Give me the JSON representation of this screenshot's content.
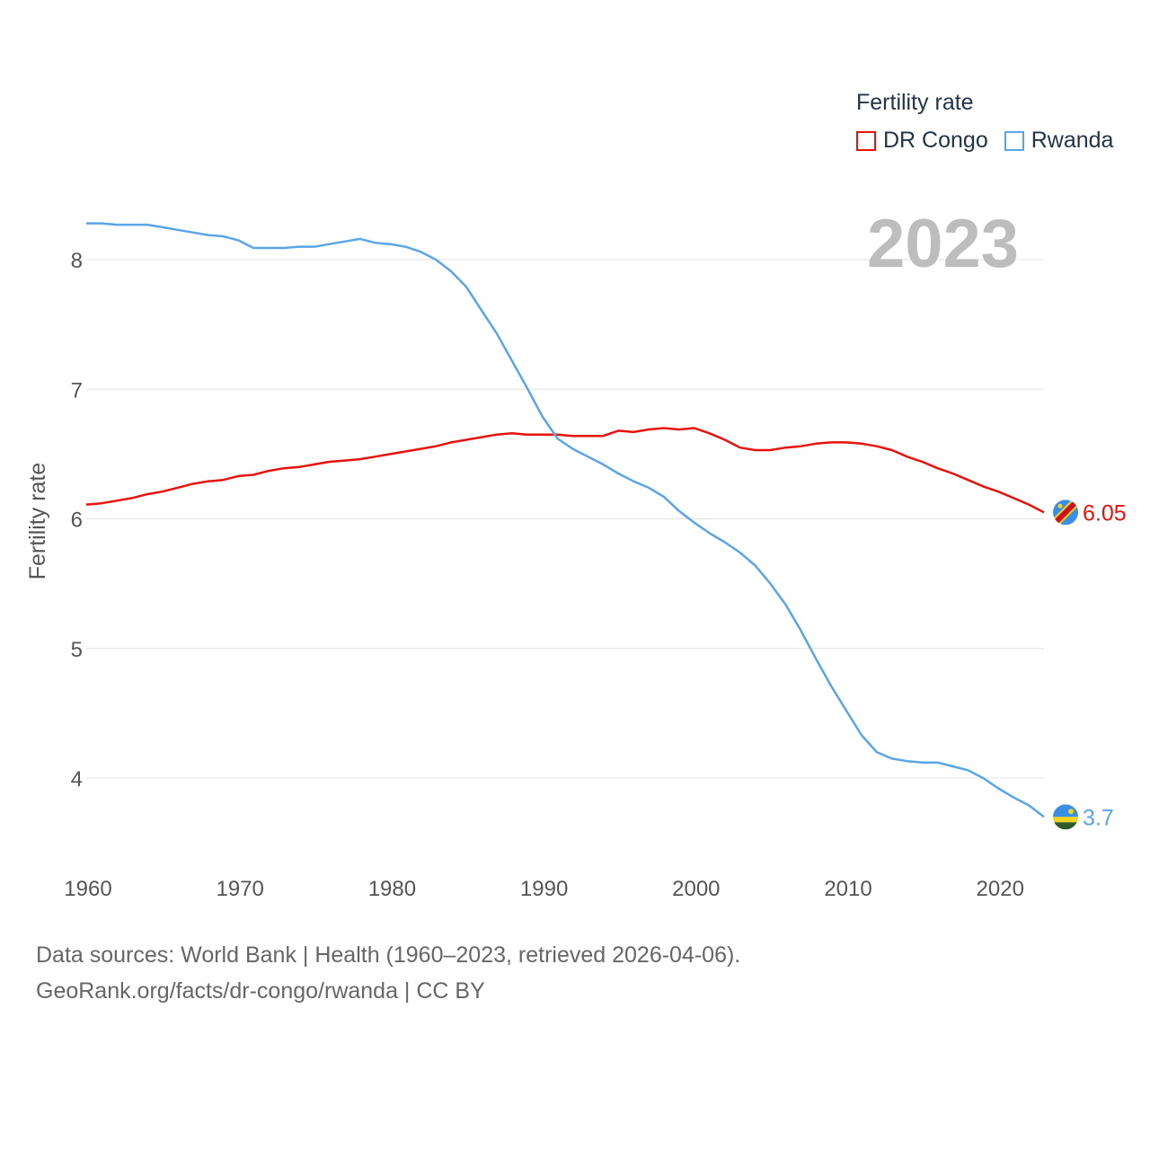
{
  "chart_data": {
    "type": "line",
    "title": "",
    "xlabel": "",
    "ylabel": "Fertility rate",
    "xlim": [
      1960,
      2023
    ],
    "ylim": [
      3.5,
      8.5
    ],
    "xticks": [
      1960,
      1970,
      1980,
      1990,
      2000,
      2010,
      2020
    ],
    "yticks": [
      4,
      5,
      6,
      7,
      8
    ],
    "grid": true,
    "legend_title": "Fertility rate",
    "legend_position": "top-right",
    "current_year": "2023",
    "x": [
      1960,
      1961,
      1962,
      1963,
      1964,
      1965,
      1966,
      1967,
      1968,
      1969,
      1970,
      1971,
      1972,
      1973,
      1974,
      1975,
      1976,
      1977,
      1978,
      1979,
      1980,
      1981,
      1982,
      1983,
      1984,
      1985,
      1986,
      1987,
      1988,
      1989,
      1990,
      1991,
      1992,
      1993,
      1994,
      1995,
      1996,
      1997,
      1998,
      1999,
      2000,
      2001,
      2002,
      2003,
      2004,
      2005,
      2006,
      2007,
      2008,
      2009,
      2010,
      2011,
      2012,
      2013,
      2014,
      2015,
      2016,
      2017,
      2018,
      2019,
      2020,
      2021,
      2022,
      2023
    ],
    "series": [
      {
        "name": "DR Congo",
        "color": "#e8120c",
        "end_label": "6.05",
        "flag": "dr-congo-flag-icon",
        "values": [
          6.11,
          6.12,
          6.14,
          6.16,
          6.19,
          6.21,
          6.24,
          6.27,
          6.29,
          6.3,
          6.33,
          6.34,
          6.37,
          6.39,
          6.4,
          6.42,
          6.44,
          6.45,
          6.46,
          6.48,
          6.5,
          6.52,
          6.54,
          6.56,
          6.59,
          6.61,
          6.63,
          6.65,
          6.66,
          6.65,
          6.65,
          6.65,
          6.64,
          6.64,
          6.64,
          6.68,
          6.67,
          6.69,
          6.7,
          6.69,
          6.7,
          6.66,
          6.61,
          6.55,
          6.53,
          6.53,
          6.55,
          6.56,
          6.58,
          6.59,
          6.59,
          6.58,
          6.56,
          6.53,
          6.48,
          6.44,
          6.39,
          6.35,
          6.3,
          6.25,
          6.21,
          6.16,
          6.11,
          6.05
        ]
      },
      {
        "name": "Rwanda",
        "color": "#5aa5e6",
        "end_label": "3.7",
        "flag": "rwanda-flag-icon",
        "values": [
          8.28,
          8.28,
          8.27,
          8.27,
          8.27,
          8.25,
          8.23,
          8.21,
          8.19,
          8.18,
          8.15,
          8.09,
          8.09,
          8.09,
          8.1,
          8.1,
          8.12,
          8.14,
          8.16,
          8.13,
          8.12,
          8.1,
          8.06,
          8.0,
          7.91,
          7.79,
          7.61,
          7.43,
          7.22,
          7.01,
          6.79,
          6.62,
          6.54,
          6.48,
          6.42,
          6.35,
          6.29,
          6.24,
          6.17,
          6.06,
          5.97,
          5.89,
          5.82,
          5.74,
          5.64,
          5.5,
          5.34,
          5.14,
          4.92,
          4.71,
          4.52,
          4.33,
          4.2,
          4.15,
          4.13,
          4.12,
          4.12,
          4.09,
          4.06,
          4.0,
          3.92,
          3.85,
          3.79,
          3.7
        ]
      }
    ]
  },
  "source": {
    "line1": "Data sources: World Bank | Health (1960–2023, retrieved 2026-04-06).",
    "line2": "GeoRank.org/facts/dr-congo/rwanda | CC BY"
  }
}
